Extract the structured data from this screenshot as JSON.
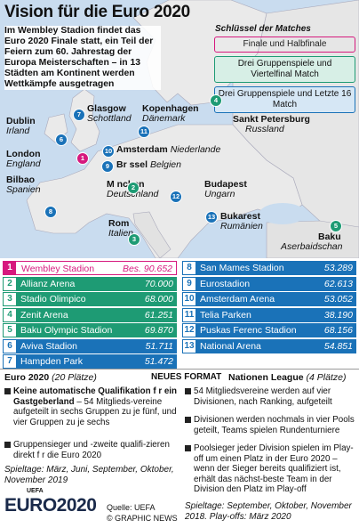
{
  "title": "Vision für die Euro 2020",
  "intro": "Im Wembley Stadion findet das Euro 2020 Finale statt, ein Teil der Feiern zum 60. Jahrestag der Europa Meisterschaften – in 13 Städten am Kontinent werden Wettkämpfe ausgetragen",
  "legend": {
    "heading": "Schlüssel der Matches",
    "item1": "Finale und Halbfinale",
    "item2": "Drei Gruppenspiele und Viertelfinal Match",
    "item3": "Drei Gruppenspiele und Letzte 16 Match"
  },
  "cities": {
    "dublin": {
      "name": "Dublin",
      "country": "Irland",
      "num": "6"
    },
    "glasgow": {
      "name": "Glasgow",
      "country": "Schottland",
      "num": "7"
    },
    "kopenhagen": {
      "name": "Kopenhagen",
      "country": "Dänemark",
      "num": "11"
    },
    "stpetersburg": {
      "name": "Sankt Petersburg",
      "country": "Russland",
      "num": "4"
    },
    "london": {
      "name": "London",
      "country": "England",
      "num": "1"
    },
    "amsterdam": {
      "name": "Amsterdam",
      "country": "Niederlande",
      "num": "10"
    },
    "bruessel": {
      "name": "Br  ssel",
      "country": "Belgien",
      "num": "9"
    },
    "bilbao": {
      "name": "Bilbao",
      "country": "Spanien",
      "num": "8"
    },
    "muenchen": {
      "name": "M  nchen",
      "country": "Deutschland",
      "num": "2"
    },
    "budapest": {
      "name": "Budapest",
      "country": "Ungarn",
      "num": "12"
    },
    "bukarest": {
      "name": "Bukarest",
      "country": "Rumänien",
      "num": "13"
    },
    "rom": {
      "name": "Rom",
      "country": "Italien",
      "num": "3"
    },
    "baku": {
      "name": "Baku",
      "country": "Aserbaidschan",
      "num": "5"
    }
  },
  "stadiums_left": [
    {
      "num": "1",
      "name": "Wembley Stadion",
      "cap": "Bes. 90.652",
      "type": "pink"
    },
    {
      "num": "2",
      "name": "Allianz Arena",
      "cap": "70.000",
      "type": "green"
    },
    {
      "num": "3",
      "name": "Stadio Olimpico",
      "cap": "68.000",
      "type": "green"
    },
    {
      "num": "4",
      "name": "Zenit Arena",
      "cap": "61.251",
      "type": "green"
    },
    {
      "num": "5",
      "name": "Baku Olympic Stadion",
      "cap": "69.870",
      "type": "green"
    },
    {
      "num": "6",
      "name": "Aviva Stadion",
      "cap": "51.711",
      "type": "blue"
    },
    {
      "num": "7",
      "name": "Hampden Park",
      "cap": "51.472",
      "type": "blue"
    }
  ],
  "stadiums_right": [
    {
      "num": "8",
      "name": "San Mames Stadion",
      "cap": "53.289",
      "type": "blue"
    },
    {
      "num": "9",
      "name": "Eurostadion",
      "cap": "62.613",
      "type": "blue"
    },
    {
      "num": "10",
      "name": "Amsterdam Arena",
      "cap": "53.052",
      "type": "blue"
    },
    {
      "num": "11",
      "name": "Telia Parken",
      "cap": "38.190",
      "type": "blue"
    },
    {
      "num": "12",
      "name": "Puskas Ferenc Stadion",
      "cap": "68.156",
      "type": "blue"
    },
    {
      "num": "13",
      "name": "National Arena",
      "cap": "54.851",
      "type": "blue"
    }
  ],
  "bottom": {
    "left_head": "Euro 2020",
    "left_sub": "(20 Plätze)",
    "center_head": "NEUES FORMAT",
    "right_head": "Nationen League",
    "right_sub": "(4 Plätze)",
    "left_b1_bold": "Keine automatische Qualifikation f  r ein Gastgeberland",
    "left_b1_rest": " – 54 Mitglieds-vereine aufgeteilt in sechs Gruppen zu je fünf, und vier Gruppen zu je sechs",
    "left_b2": "Gruppensieger und -zweite qualifi-zieren direkt f  r die Euro 2020",
    "left_dates": "Spieltage: März, Juni, September, Oktober, November 2019",
    "right_b1": "54 Mitgliedsvereine werden auf vier Divisionen, nach Ranking, aufgeteilt",
    "right_b2": "Divisionen werden nochmals in vier Pools geteilt, Teams spielen Rundenturniere",
    "right_b3": "Poolsieger jeder Division spielen im Play-off um einen Platz in der Euro 2020 – wenn der Sieger bereits qualifiziert ist, erhält das nächst-beste Team in der Division den Platz im Play-off",
    "right_dates": "Spieltage: September, Oktober, November 2018. Play-offs: März 2020",
    "uefa_small": "UEFA",
    "logo": "EURO2020",
    "source": "Quelle: UEFA",
    "credit": "© GRAPHIC NEWS"
  },
  "colors": {
    "pink": "#d6197e",
    "green": "#1e9b74",
    "blue": "#1a72b8",
    "sea": "#c9dcef",
    "land": "#eaeaea"
  }
}
